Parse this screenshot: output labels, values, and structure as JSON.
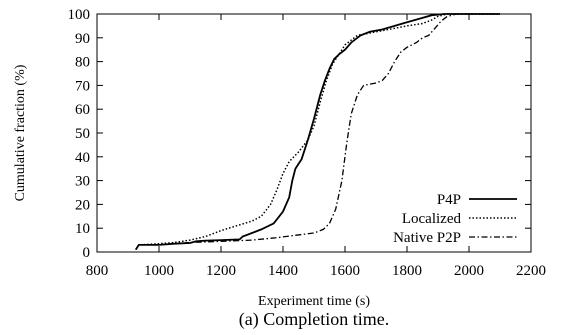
{
  "chart_data": {
    "type": "line",
    "title": "",
    "caption": "(a) Completion time.",
    "xlabel": "Experiment time (s)",
    "ylabel": "Cumulative fraction (%)",
    "xlim": [
      800,
      2200
    ],
    "ylim": [
      0,
      100
    ],
    "xticks": [
      800,
      1000,
      1200,
      1400,
      1600,
      1800,
      2000,
      2200
    ],
    "yticks": [
      0,
      10,
      20,
      30,
      40,
      50,
      60,
      70,
      80,
      90,
      100
    ],
    "grid": false,
    "legend_position": "bottom-right",
    "series": [
      {
        "name": "P4P",
        "style": "solid",
        "points": [
          [
            925,
            1
          ],
          [
            935,
            3
          ],
          [
            1000,
            3
          ],
          [
            1050,
            3.5
          ],
          [
            1100,
            3.8
          ],
          [
            1120,
            4.5
          ],
          [
            1150,
            4.8
          ],
          [
            1200,
            5
          ],
          [
            1260,
            5.3
          ],
          [
            1270,
            6.5
          ],
          [
            1300,
            8
          ],
          [
            1330,
            9.5
          ],
          [
            1370,
            12
          ],
          [
            1400,
            17
          ],
          [
            1420,
            23
          ],
          [
            1430,
            30
          ],
          [
            1440,
            35
          ],
          [
            1450,
            37
          ],
          [
            1460,
            39
          ],
          [
            1480,
            47
          ],
          [
            1500,
            56
          ],
          [
            1520,
            66
          ],
          [
            1535,
            72
          ],
          [
            1550,
            77
          ],
          [
            1565,
            81
          ],
          [
            1580,
            83
          ],
          [
            1600,
            85
          ],
          [
            1620,
            88
          ],
          [
            1650,
            91
          ],
          [
            1680,
            92.5
          ],
          [
            1720,
            93.5
          ],
          [
            1760,
            95
          ],
          [
            1800,
            96.5
          ],
          [
            1840,
            98
          ],
          [
            1880,
            99.5
          ],
          [
            1920,
            100
          ],
          [
            2100,
            100
          ]
        ]
      },
      {
        "name": "Localized",
        "style": "dotted",
        "points": [
          [
            925,
            1
          ],
          [
            935,
            3
          ],
          [
            1000,
            3.5
          ],
          [
            1050,
            4
          ],
          [
            1100,
            5
          ],
          [
            1150,
            6.5
          ],
          [
            1200,
            9
          ],
          [
            1250,
            11
          ],
          [
            1300,
            13
          ],
          [
            1330,
            15
          ],
          [
            1360,
            20
          ],
          [
            1380,
            26
          ],
          [
            1400,
            33
          ],
          [
            1420,
            38
          ],
          [
            1450,
            42
          ],
          [
            1480,
            47
          ],
          [
            1500,
            53
          ],
          [
            1520,
            63
          ],
          [
            1540,
            72
          ],
          [
            1560,
            79
          ],
          [
            1580,
            83
          ],
          [
            1600,
            87
          ],
          [
            1640,
            91
          ],
          [
            1680,
            92
          ],
          [
            1720,
            93
          ],
          [
            1760,
            94
          ],
          [
            1800,
            95
          ],
          [
            1850,
            96
          ],
          [
            1880,
            97.5
          ],
          [
            1900,
            99
          ],
          [
            1930,
            100
          ],
          [
            2100,
            100
          ]
        ]
      },
      {
        "name": "Native P2P",
        "style": "dashdot",
        "points": [
          [
            925,
            1
          ],
          [
            935,
            3
          ],
          [
            1000,
            3
          ],
          [
            1100,
            4
          ],
          [
            1200,
            4.5
          ],
          [
            1300,
            5
          ],
          [
            1380,
            6
          ],
          [
            1440,
            7
          ],
          [
            1500,
            8
          ],
          [
            1530,
            9.5
          ],
          [
            1550,
            12
          ],
          [
            1570,
            18
          ],
          [
            1590,
            30
          ],
          [
            1605,
            45
          ],
          [
            1620,
            58
          ],
          [
            1640,
            66
          ],
          [
            1660,
            70
          ],
          [
            1700,
            71
          ],
          [
            1720,
            72
          ],
          [
            1740,
            75
          ],
          [
            1760,
            80
          ],
          [
            1780,
            84
          ],
          [
            1800,
            86
          ],
          [
            1830,
            88
          ],
          [
            1850,
            90
          ],
          [
            1870,
            91
          ],
          [
            1890,
            94
          ],
          [
            1910,
            97
          ],
          [
            1930,
            99
          ],
          [
            1960,
            100
          ],
          [
            2100,
            100
          ]
        ]
      }
    ]
  }
}
